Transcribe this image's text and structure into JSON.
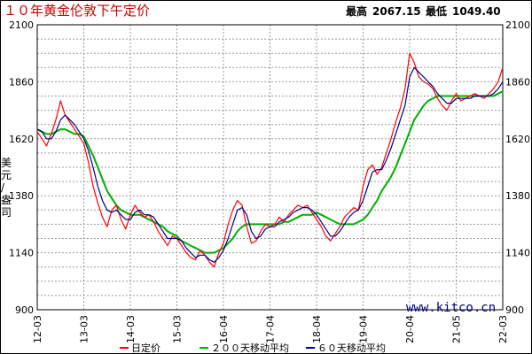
{
  "header": {
    "title": "１０年黄金伦敦下午定价",
    "high_label": "最高",
    "high_value": "2067.15",
    "low_label": "最低",
    "low_value": "1049.40"
  },
  "watermark": "www.kitco.cn",
  "colors": {
    "daily": "#ff0000",
    "ma200": "#00b000",
    "ma60": "#00008b",
    "grid": "#999999",
    "title": "#cc0000"
  },
  "chart_data": {
    "type": "line",
    "title": "１０年黄金伦敦下午定价",
    "ylabel": "美元/盎司",
    "ylim": [
      900,
      2100
    ],
    "y_ticks": [
      900,
      1140,
      1380,
      1620,
      1860,
      2100
    ],
    "x_ticks": [
      "12-03",
      "13-03",
      "14-03",
      "15-03",
      "16-04",
      "17-04",
      "18-04",
      "19-04",
      "20-04",
      "21-05",
      "22-03"
    ],
    "grid": true,
    "legend_position": "bottom",
    "series": [
      {
        "name": "日定价",
        "color": "#ff0000",
        "x": [
          0,
          0.1,
          0.2,
          0.3,
          0.4,
          0.5,
          0.6,
          0.7,
          0.8,
          0.9,
          1,
          1.1,
          1.2,
          1.3,
          1.4,
          1.5,
          1.6,
          1.7,
          1.8,
          1.9,
          2,
          2.1,
          2.2,
          2.3,
          2.4,
          2.5,
          2.6,
          2.7,
          2.8,
          2.9,
          3,
          3.1,
          3.2,
          3.3,
          3.4,
          3.5,
          3.6,
          3.7,
          3.8,
          3.9,
          4,
          4.1,
          4.2,
          4.3,
          4.4,
          4.5,
          4.6,
          4.7,
          4.8,
          4.9,
          5,
          5.1,
          5.2,
          5.3,
          5.4,
          5.5,
          5.6,
          5.7,
          5.8,
          5.9,
          6,
          6.1,
          6.2,
          6.3,
          6.4,
          6.5,
          6.6,
          6.7,
          6.8,
          6.9,
          7,
          7.1,
          7.2,
          7.3,
          7.4,
          7.5,
          7.6,
          7.7,
          7.8,
          7.9,
          8,
          8.1,
          8.2,
          8.3,
          8.4,
          8.5,
          8.6,
          8.7,
          8.8,
          8.9,
          9,
          9.1,
          9.2,
          9.3,
          9.4,
          9.5,
          9.6,
          9.7,
          9.8,
          9.9,
          10
        ],
        "values": [
          1650,
          1620,
          1590,
          1640,
          1700,
          1780,
          1720,
          1690,
          1660,
          1630,
          1600,
          1520,
          1420,
          1350,
          1290,
          1250,
          1320,
          1340,
          1280,
          1240,
          1300,
          1340,
          1310,
          1290,
          1300,
          1270,
          1230,
          1200,
          1170,
          1210,
          1200,
          1170,
          1140,
          1120,
          1110,
          1150,
          1130,
          1100,
          1080,
          1140,
          1180,
          1260,
          1320,
          1360,
          1340,
          1250,
          1180,
          1190,
          1230,
          1260,
          1250,
          1260,
          1290,
          1270,
          1300,
          1320,
          1340,
          1330,
          1340,
          1310,
          1280,
          1250,
          1210,
          1190,
          1220,
          1250,
          1290,
          1310,
          1330,
          1320,
          1420,
          1490,
          1510,
          1470,
          1500,
          1560,
          1620,
          1690,
          1750,
          1830,
          1980,
          1940,
          1880,
          1860,
          1850,
          1830,
          1790,
          1760,
          1740,
          1780,
          1810,
          1780,
          1790,
          1800,
          1810,
          1800,
          1790,
          1810,
          1830,
          1860,
          1920
        ]
      },
      {
        "name": "２００天移动平均",
        "color": "#00b000",
        "x": [
          0,
          0.1,
          0.2,
          0.3,
          0.4,
          0.5,
          0.6,
          0.7,
          0.8,
          0.9,
          1,
          1.1,
          1.2,
          1.3,
          1.4,
          1.5,
          1.6,
          1.7,
          1.8,
          1.9,
          2,
          2.1,
          2.2,
          2.3,
          2.4,
          2.5,
          2.6,
          2.7,
          2.8,
          2.9,
          3,
          3.1,
          3.2,
          3.3,
          3.4,
          3.5,
          3.6,
          3.7,
          3.8,
          3.9,
          4,
          4.1,
          4.2,
          4.3,
          4.4,
          4.5,
          4.6,
          4.7,
          4.8,
          4.9,
          5,
          5.1,
          5.2,
          5.3,
          5.4,
          5.5,
          5.6,
          5.7,
          5.8,
          5.9,
          6,
          6.1,
          6.2,
          6.3,
          6.4,
          6.5,
          6.6,
          6.7,
          6.8,
          6.9,
          7,
          7.1,
          7.2,
          7.3,
          7.4,
          7.5,
          7.6,
          7.7,
          7.8,
          7.9,
          8,
          8.1,
          8.2,
          8.3,
          8.4,
          8.5,
          8.6,
          8.7,
          8.8,
          8.9,
          9,
          9.1,
          9.2,
          9.3,
          9.4,
          9.5,
          9.6,
          9.7,
          9.8,
          9.9,
          10
        ],
        "values": [
          1660,
          1650,
          1640,
          1640,
          1650,
          1660,
          1660,
          1650,
          1640,
          1640,
          1630,
          1590,
          1550,
          1500,
          1450,
          1400,
          1370,
          1340,
          1320,
          1310,
          1300,
          1300,
          1300,
          1290,
          1280,
          1270,
          1260,
          1250,
          1230,
          1220,
          1210,
          1190,
          1180,
          1170,
          1160,
          1150,
          1140,
          1140,
          1140,
          1150,
          1160,
          1180,
          1200,
          1230,
          1250,
          1260,
          1260,
          1260,
          1260,
          1260,
          1260,
          1260,
          1260,
          1270,
          1270,
          1280,
          1290,
          1300,
          1300,
          1300,
          1310,
          1300,
          1290,
          1280,
          1270,
          1260,
          1260,
          1260,
          1260,
          1270,
          1280,
          1300,
          1330,
          1360,
          1400,
          1430,
          1460,
          1500,
          1550,
          1600,
          1650,
          1700,
          1730,
          1760,
          1780,
          1790,
          1800,
          1800,
          1800,
          1800,
          1800,
          1800,
          1800,
          1800,
          1800,
          1800,
          1800,
          1800,
          1800,
          1810,
          1820
        ]
      },
      {
        "name": "６０天移动平均",
        "color": "#00008b",
        "x": [
          0,
          0.1,
          0.2,
          0.3,
          0.4,
          0.5,
          0.6,
          0.7,
          0.8,
          0.9,
          1,
          1.1,
          1.2,
          1.3,
          1.4,
          1.5,
          1.6,
          1.7,
          1.8,
          1.9,
          2,
          2.1,
          2.2,
          2.3,
          2.4,
          2.5,
          2.6,
          2.7,
          2.8,
          2.9,
          3,
          3.1,
          3.2,
          3.3,
          3.4,
          3.5,
          3.6,
          3.7,
          3.8,
          3.9,
          4,
          4.1,
          4.2,
          4.3,
          4.4,
          4.5,
          4.6,
          4.7,
          4.8,
          4.9,
          5,
          5.1,
          5.2,
          5.3,
          5.4,
          5.5,
          5.6,
          5.7,
          5.8,
          5.9,
          6,
          6.1,
          6.2,
          6.3,
          6.4,
          6.5,
          6.6,
          6.7,
          6.8,
          6.9,
          7,
          7.1,
          7.2,
          7.3,
          7.4,
          7.5,
          7.6,
          7.7,
          7.8,
          7.9,
          8,
          8.1,
          8.2,
          8.3,
          8.4,
          8.5,
          8.6,
          8.7,
          8.8,
          8.9,
          9,
          9.1,
          9.2,
          9.3,
          9.4,
          9.5,
          9.6,
          9.7,
          9.8,
          9.9,
          10
        ],
        "values": [
          1660,
          1650,
          1620,
          1620,
          1650,
          1700,
          1720,
          1700,
          1680,
          1650,
          1620,
          1570,
          1500,
          1420,
          1360,
          1320,
          1310,
          1320,
          1300,
          1280,
          1280,
          1310,
          1320,
          1300,
          1300,
          1290,
          1260,
          1230,
          1200,
          1200,
          1200,
          1190,
          1160,
          1140,
          1120,
          1130,
          1130,
          1110,
          1100,
          1120,
          1150,
          1200,
          1260,
          1320,
          1330,
          1300,
          1230,
          1200,
          1210,
          1240,
          1250,
          1250,
          1270,
          1280,
          1290,
          1310,
          1320,
          1330,
          1330,
          1320,
          1300,
          1270,
          1240,
          1210,
          1210,
          1230,
          1260,
          1290,
          1310,
          1320,
          1360,
          1420,
          1480,
          1490,
          1490,
          1530,
          1580,
          1640,
          1700,
          1760,
          1880,
          1920,
          1900,
          1880,
          1860,
          1840,
          1810,
          1790,
          1770,
          1770,
          1790,
          1790,
          1790,
          1790,
          1800,
          1800,
          1800,
          1800,
          1810,
          1830,
          1860
        ]
      }
    ]
  }
}
